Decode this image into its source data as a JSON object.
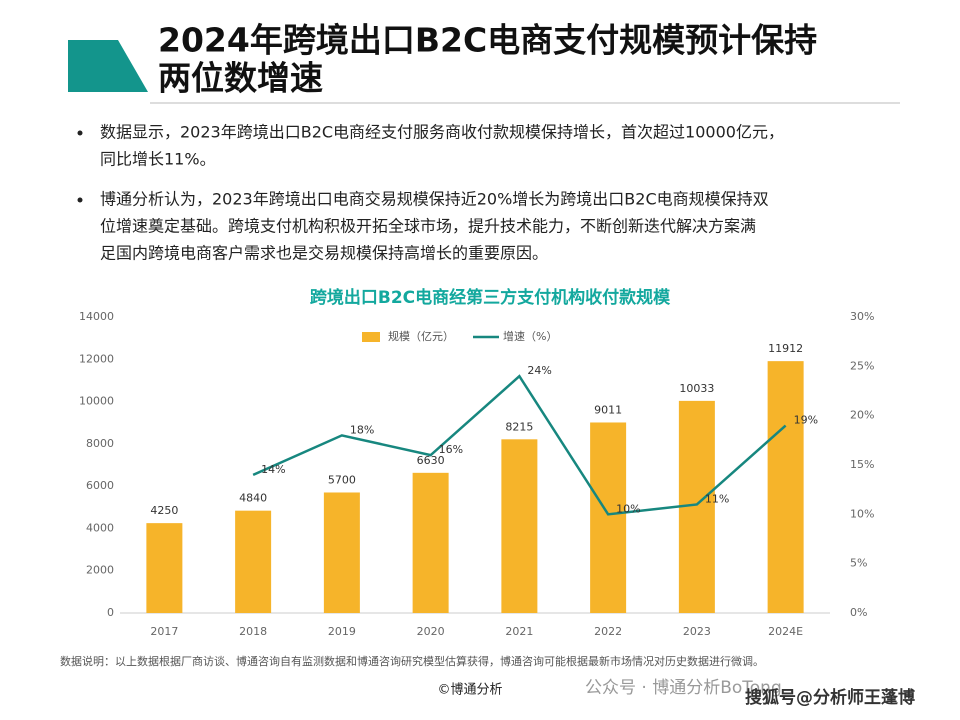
{
  "title": [
    "2024年跨境出口B2C电商支付规模预计保持",
    "两位数增速"
  ],
  "bullets": [
    [
      "数据显示，2023年跨境出口B2C电商经支付服务商收付款规模保持增长，首次超过10000亿元，",
      "同比增长11%。"
    ],
    [
      "博通分析认为，2023年跨境出口电商交易规模保持近20%增长为跨境出口B2C电商规模保持双",
      "位增速奠定基础。跨境支付机构积极开拓全球市场，提升技术能力，不断创新迭代解决方案满",
      "足国内跨境电商客户需求也是交易规模保持高增长的重要原因。"
    ]
  ],
  "chart_data": {
    "type": "bar",
    "title": "跨境出口B2C电商经第三方支付机构收付款规模",
    "categories": [
      "2017",
      "2018",
      "2019",
      "2020",
      "2021",
      "2022",
      "2023",
      "2024E"
    ],
    "series": [
      {
        "name": "规模（亿元）",
        "type": "bar",
        "color": "#f6b42a",
        "values": [
          4250,
          4840,
          5700,
          6630,
          8215,
          9011,
          10033,
          11912
        ]
      },
      {
        "name": "增速（%）",
        "type": "line",
        "axis": "y2",
        "color": "#17877f",
        "values": [
          null,
          14,
          18,
          16,
          24,
          10,
          11,
          19
        ],
        "value_labels": [
          null,
          "14%",
          "18%",
          "16%",
          "24%",
          "10%",
          "11%",
          "19%"
        ]
      }
    ],
    "ylim": [
      0,
      14000
    ],
    "yticks": [
      0,
      2000,
      4000,
      6000,
      8000,
      10000,
      12000,
      14000
    ],
    "y2lim": [
      0,
      30
    ],
    "y2ticks": [
      {
        "value": 0,
        "label": "0%"
      },
      {
        "value": 5,
        "label": "5%"
      },
      {
        "value": 10,
        "label": "10%"
      },
      {
        "value": 15,
        "label": "15%"
      },
      {
        "value": 20,
        "label": "20%"
      },
      {
        "value": 25,
        "label": "25%"
      },
      {
        "value": 30,
        "label": "30%"
      }
    ],
    "legend": "top"
  },
  "note": "数据说明：以上数据根据厂商访谈、博通咨询自有监测数据和博通咨询研究模型估算获得，博通咨询可能根据最新市场情况对历史数据进行微调。",
  "copyright": "©博通分析",
  "watermarks": [
    "公众号 · 博通分析BoTong",
    "搜狐号@分析师王蓬博"
  ]
}
